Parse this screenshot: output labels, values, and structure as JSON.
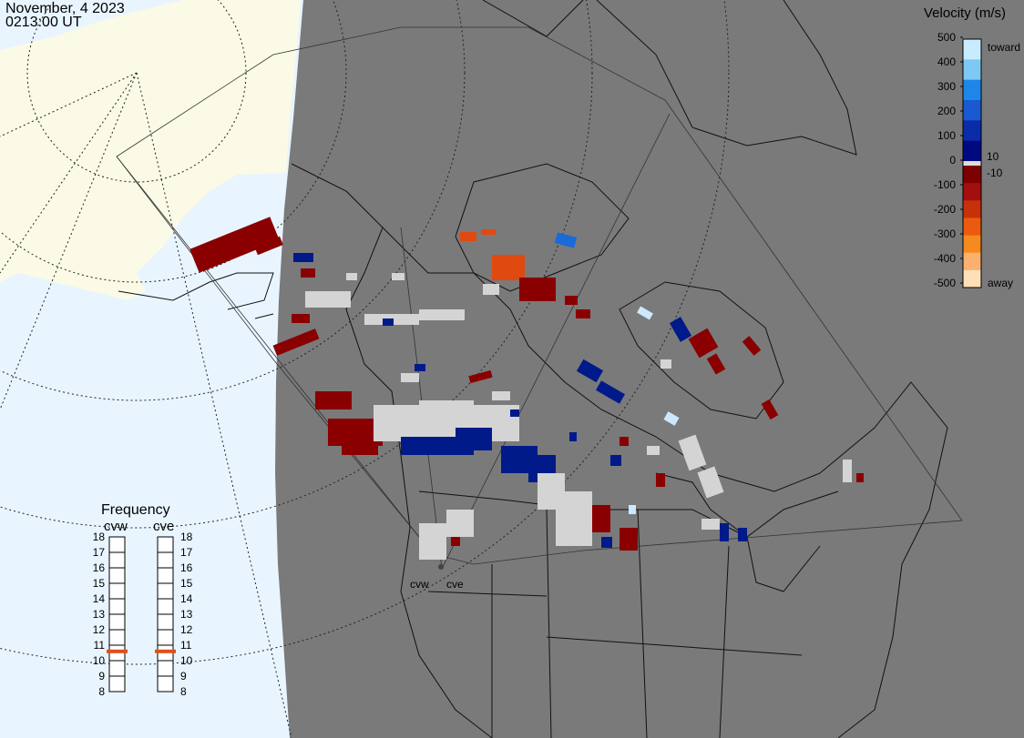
{
  "header": {
    "date": "November, 4 2023",
    "time": "0213:00 UT"
  },
  "legend": {
    "title": "Velocity (m/s)",
    "ticks": [
      "500",
      "400",
      "300",
      "200",
      "100",
      "0",
      "-100",
      "-200",
      "-300",
      "-400",
      "-500"
    ],
    "toward_label": "toward",
    "away_label": "away",
    "pos_small_label": "10",
    "neg_small_label": "-10",
    "colors": [
      "#fde0b8",
      "#fbb070",
      "#f58a1e",
      "#ea5a10",
      "#c8300a",
      "#a30f0f",
      "#7d0000",
      "#000a80",
      "#0a2ca8",
      "#1a5ad0",
      "#1e86e8",
      "#7ec8f4",
      "#c8ecff"
    ]
  },
  "frequency": {
    "title": "Frequency",
    "radars": [
      "cvw",
      "cve"
    ],
    "levels": [
      "18",
      "17",
      "16",
      "15",
      "14",
      "13",
      "12",
      "11",
      "10",
      "9",
      "8"
    ],
    "current_mhz": [
      10.6,
      10.6
    ],
    "marker_color": "#e0501a"
  },
  "map": {
    "radar_site_labels": [
      "cvw",
      "cve"
    ],
    "land_color": "#7a7a7a",
    "ocean_color": "#e8f5ff",
    "ice_color": "#fafae6"
  }
}
